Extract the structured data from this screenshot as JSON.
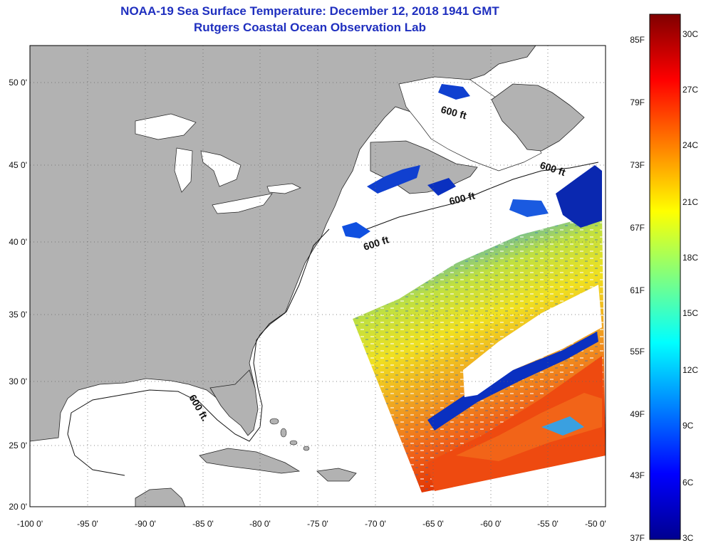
{
  "title": "NOAA-19 Sea Surface Temperature:  December 12, 2018 1941 GMT",
  "subtitle": "Rutgers Coastal Ocean Observation Lab",
  "lon_ticks": [
    "-100 0'",
    "-95 0'",
    "-90 0'",
    "-85 0'",
    "-80 0'",
    "-75 0'",
    "-70 0'",
    "-65 0'",
    "-60 0'",
    "-55 0'",
    "-50 0'"
  ],
  "lat_ticks": [
    "50 0'",
    "45 0'",
    "40 0'",
    "35 0'",
    "30 0'",
    "25 0'",
    "20 0'"
  ],
  "contour_labels": [
    "600 ft",
    "600 ft",
    "600 ft",
    "600 ft",
    "600 ft."
  ],
  "colorbar": {
    "fahrenheit": [
      "85F",
      "79F",
      "73F",
      "67F",
      "61F",
      "55F",
      "49F",
      "43F",
      "37F"
    ],
    "celsius": [
      "30C",
      "27C",
      "24C",
      "21C",
      "18C",
      "15C",
      "12C",
      "9C",
      "6C",
      "3C"
    ]
  },
  "colors": {
    "title": "#1f2fbf",
    "land": "#b2b2b2",
    "water": "#ffffff",
    "cold": "#00008f",
    "warm": "#e03000"
  }
}
